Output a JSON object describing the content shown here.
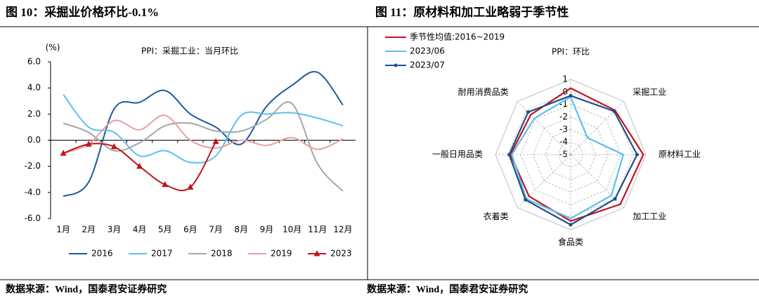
{
  "chart_data": [
    {
      "type": "line",
      "title": "图 10：采掘业价格环比-0.1%",
      "subtitle": "PPI：采掘工业：当月环比",
      "y_label": "(%)",
      "categories": [
        "1月",
        "2月",
        "3月",
        "4月",
        "5月",
        "6月",
        "7月",
        "8月",
        "9月",
        "10月",
        "11月",
        "12月"
      ],
      "series": [
        {
          "name": "2016",
          "color": "#1f5a9e",
          "values": [
            -4.3,
            -3.2,
            2.4,
            2.9,
            3.8,
            2.0,
            1.0,
            -0.3,
            2.6,
            4.2,
            5.2,
            2.7
          ]
        },
        {
          "name": "2017",
          "color": "#5bc0eb",
          "values": [
            3.5,
            1.0,
            0.6,
            -1.2,
            -0.8,
            -1.7,
            -1.2,
            1.9,
            2.0,
            2.1,
            1.7,
            1.1
          ]
        },
        {
          "name": "2018",
          "color": "#a6a6a6",
          "values": [
            1.3,
            0.6,
            -0.8,
            -0.2,
            1.1,
            1.3,
            0.7,
            0.7,
            1.6,
            2.8,
            -1.8,
            -3.9
          ]
        },
        {
          "name": "2019",
          "color": "#e6a0a0",
          "values": [
            -1.0,
            -0.3,
            1.5,
            0.8,
            1.9,
            0.0,
            -0.6,
            0.0,
            -0.4,
            0.2,
            -0.7,
            0.1
          ]
        },
        {
          "name": "2023",
          "color": "#c0141e",
          "marker": "triangle",
          "values": [
            -1.0,
            -0.3,
            -0.5,
            -2.0,
            -3.4,
            -3.6,
            -0.1,
            null,
            null,
            null,
            null,
            null
          ]
        }
      ],
      "ylim": [
        -6,
        6
      ],
      "yticks": [
        {
          "value": 6,
          "label": "6.0"
        },
        {
          "value": 4,
          "label": "4.0"
        },
        {
          "value": 2,
          "label": "2.0"
        },
        {
          "value": 0,
          "label": "0.0"
        },
        {
          "value": -2,
          "label": "-2.0"
        },
        {
          "value": -4,
          "label": "-4.0"
        },
        {
          "value": -6,
          "label": "-6.0"
        }
      ],
      "legend": "bottom",
      "source": "数据来源：Wind，国泰君安证券研究"
    },
    {
      "type": "radar",
      "title": "图 11：原材料和加工业略弱于季节性",
      "subtitle": "PPI：环比",
      "categories": [
        null,
        "采掘工业",
        "原材料工业",
        "加工工业",
        "食品类",
        "衣着类",
        "一般日用品类",
        "耐用消费品类"
      ],
      "series": [
        {
          "name": "季节性均值:2016~2019",
          "color": "#c0141e",
          "values": [
            0.3,
            0.0,
            0.8,
            0.6,
            0.3,
            -0.3,
            -0.2,
            -0.5
          ]
        },
        {
          "name": "2023/06",
          "color": "#5bc0eb",
          "values": [
            -0.4,
            -3.1,
            -0.8,
            -0.4,
            0.1,
            0.0,
            -0.3,
            -0.9
          ]
        },
        {
          "name": "2023/07",
          "color": "#1f4e8c",
          "marker": "circle",
          "values": [
            -0.3,
            -0.1,
            0.3,
            0.0,
            0.6,
            0.1,
            -0.1,
            -0.2
          ]
        }
      ],
      "rlim": [
        -5,
        1
      ],
      "rticks": [
        1,
        0,
        -1,
        -2,
        -3,
        -4,
        -5
      ],
      "legend": "top-left",
      "source": "数据来源：Wind，国泰君安证券研究"
    }
  ]
}
